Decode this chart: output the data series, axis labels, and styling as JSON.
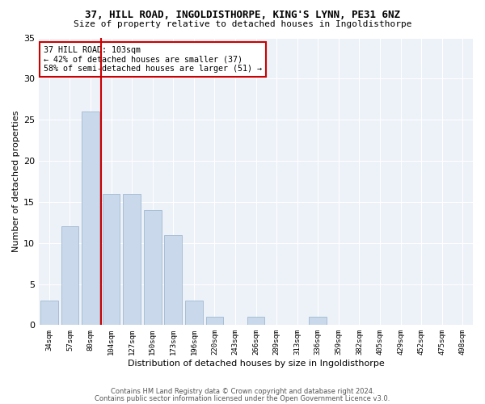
{
  "title1": "37, HILL ROAD, INGOLDISTHORPE, KING'S LYNN, PE31 6NZ",
  "title2": "Size of property relative to detached houses in Ingoldisthorpe",
  "xlabel": "Distribution of detached houses by size in Ingoldisthorpe",
  "ylabel": "Number of detached properties",
  "categories": [
    "34sqm",
    "57sqm",
    "80sqm",
    "104sqm",
    "127sqm",
    "150sqm",
    "173sqm",
    "196sqm",
    "220sqm",
    "243sqm",
    "266sqm",
    "289sqm",
    "313sqm",
    "336sqm",
    "359sqm",
    "382sqm",
    "405sqm",
    "429sqm",
    "452sqm",
    "475sqm",
    "498sqm"
  ],
  "values": [
    3,
    12,
    26,
    16,
    16,
    14,
    11,
    3,
    1,
    0,
    1,
    0,
    0,
    1,
    0,
    0,
    0,
    0,
    0,
    0,
    0
  ],
  "bar_color": "#c9d9eb",
  "bar_edge_color": "#a0b8d0",
  "vline_x": 2.5,
  "marker_label": "37 HILL ROAD: 103sqm",
  "annotation_line1": "← 42% of detached houses are smaller (37)",
  "annotation_line2": "58% of semi-detached houses are larger (51) →",
  "vline_color": "#cc0000",
  "annotation_box_color": "#cc0000",
  "ylim": [
    0,
    35
  ],
  "yticks": [
    0,
    5,
    10,
    15,
    20,
    25,
    30,
    35
  ],
  "footer1": "Contains HM Land Registry data © Crown copyright and database right 2024.",
  "footer2": "Contains public sector information licensed under the Open Government Licence v3.0.",
  "bg_color": "#edf1f8"
}
